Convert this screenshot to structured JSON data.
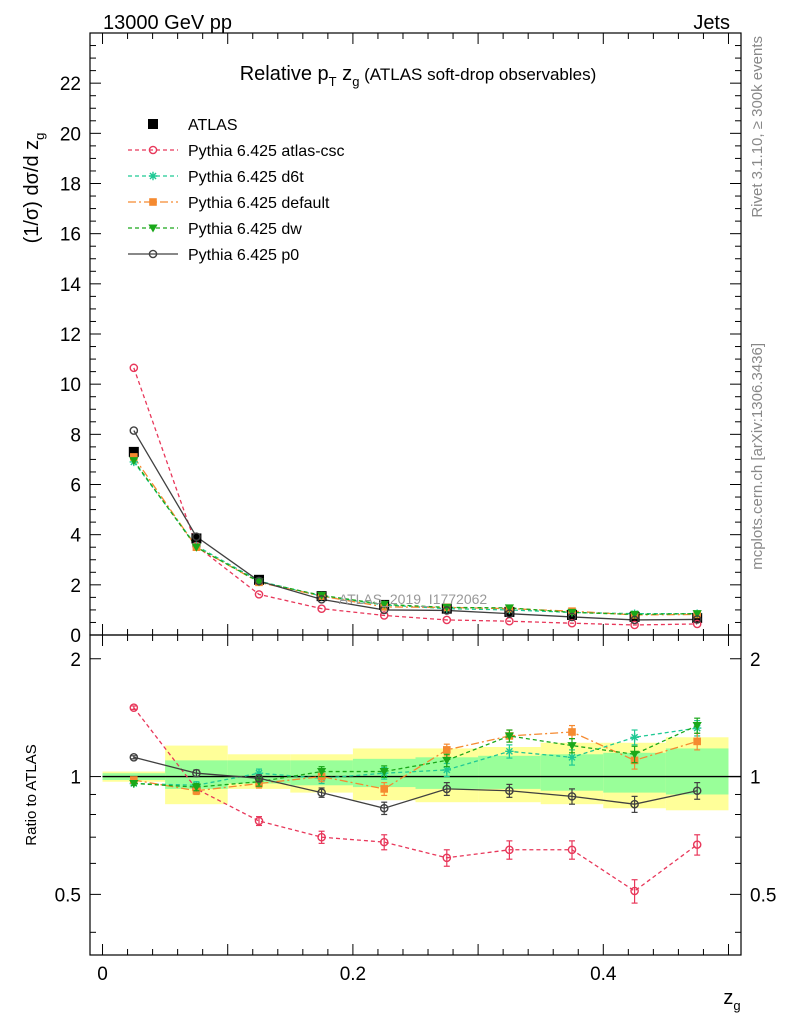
{
  "header": {
    "left": "13000 GeV pp",
    "right": "Jets"
  },
  "side_labels": {
    "rivet": "Rivet 3.1.10, ≥ 300k events",
    "mcplots": "mcplots.cern.ch [arXiv:1306.3436]"
  },
  "watermark": "ATLAS_2019_I1772062",
  "colors": {
    "ATLAS": "#000000",
    "atlas_csc": "#e8375a",
    "d6t": "#1ec994",
    "default": "#f58a30",
    "dw": "#1aa81a",
    "p0": "#404040",
    "band_yellow": "#ffff99",
    "band_green": "#99ff99"
  },
  "chart_data": [
    {
      "type": "line",
      "title": {
        "main": "Relative p",
        "sub1": "T",
        "mid": " z",
        "sub2": "g",
        "tail": " (ATLAS soft-drop observables)"
      },
      "ylabel": {
        "main": "(1/σ) dσ/d z",
        "sub": "g"
      },
      "xlim": [
        -0.01,
        0.51
      ],
      "ylim": [
        0,
        24
      ],
      "yticks": [
        0,
        2,
        4,
        6,
        8,
        10,
        12,
        14,
        16,
        18,
        20,
        22
      ],
      "x": [
        0.025,
        0.075,
        0.125,
        0.175,
        0.225,
        0.275,
        0.325,
        0.375,
        0.425,
        0.475
      ],
      "legend_position": "top-left",
      "data": {
        "name": "ATLAS",
        "values": [
          7.3,
          3.85,
          2.2,
          1.55,
          1.2,
          1.05,
          0.92,
          0.8,
          0.72,
          0.68
        ]
      },
      "series": [
        {
          "name": "Pythia 6.425 atlas-csc",
          "key": "atlas_csc",
          "values": [
            10.65,
            3.55,
            1.62,
            1.05,
            0.78,
            0.6,
            0.55,
            0.47,
            0.4,
            0.44
          ]
        },
        {
          "name": "Pythia 6.425 d6t",
          "key": "d6t",
          "values": [
            6.9,
            3.55,
            2.15,
            1.55,
            1.2,
            1.05,
            1.0,
            0.9,
            0.85,
            0.85
          ]
        },
        {
          "name": "Pythia 6.425 default",
          "key": "default",
          "values": [
            7.1,
            3.5,
            2.1,
            1.55,
            1.12,
            1.1,
            1.05,
            0.95,
            0.8,
            0.82
          ]
        },
        {
          "name": "Pythia 6.425 dw",
          "key": "dw",
          "values": [
            6.95,
            3.5,
            2.12,
            1.58,
            1.22,
            1.1,
            1.08,
            0.9,
            0.82,
            0.85
          ]
        },
        {
          "name": "Pythia 6.425 p0",
          "key": "p0",
          "values": [
            8.15,
            3.92,
            2.15,
            1.42,
            1.0,
            0.98,
            0.85,
            0.72,
            0.6,
            0.62
          ]
        }
      ]
    },
    {
      "type": "line",
      "ylabel": "Ratio to ATLAS",
      "xlabel": {
        "main": "z",
        "sub": "g"
      },
      "xlim": [
        -0.01,
        0.51
      ],
      "ylim": [
        0.35,
        2.3
      ],
      "yscale": "log",
      "ytick_labels": [
        {
          "value": 0.5,
          "label": "0.5"
        },
        {
          "value": 1,
          "label": "1"
        },
        {
          "value": 2,
          "label": "2"
        }
      ],
      "xtick_labels": [
        {
          "value": 0,
          "label": "0"
        },
        {
          "value": 0.2,
          "label": "0.2"
        },
        {
          "value": 0.4,
          "label": "0.4"
        }
      ],
      "x": [
        0.025,
        0.075,
        0.125,
        0.175,
        0.225,
        0.275,
        0.325,
        0.375,
        0.425,
        0.475
      ],
      "bin_edges": [
        0.0,
        0.05,
        0.1,
        0.15,
        0.2,
        0.25,
        0.3,
        0.35,
        0.4,
        0.45,
        0.5
      ],
      "band_yellow": [
        [
          0.97,
          1.03
        ],
        [
          0.85,
          1.2
        ],
        [
          0.93,
          1.14
        ],
        [
          0.91,
          1.14
        ],
        [
          0.87,
          1.18
        ],
        [
          0.86,
          1.18
        ],
        [
          0.86,
          1.19
        ],
        [
          0.85,
          1.22
        ],
        [
          0.83,
          1.22
        ],
        [
          0.82,
          1.26
        ]
      ],
      "band_green": [
        [
          0.98,
          1.02
        ],
        [
          0.93,
          1.1
        ],
        [
          0.96,
          1.1
        ],
        [
          0.95,
          1.1
        ],
        [
          0.94,
          1.11
        ],
        [
          0.93,
          1.12
        ],
        [
          0.93,
          1.13
        ],
        [
          0.92,
          1.14
        ],
        [
          0.91,
          1.15
        ],
        [
          0.9,
          1.18
        ]
      ],
      "series": [
        {
          "name": "Pythia 6.425 atlas-csc",
          "key": "atlas_csc",
          "values": [
            1.5,
            0.93,
            0.77,
            0.7,
            0.68,
            0.62,
            0.65,
            0.65,
            0.51,
            0.67
          ],
          "err": [
            0.015,
            0.02,
            0.02,
            0.025,
            0.03,
            0.03,
            0.035,
            0.035,
            0.035,
            0.04
          ]
        },
        {
          "name": "Pythia 6.425 d6t",
          "key": "d6t",
          "values": [
            0.96,
            0.95,
            1.02,
            0.99,
            1.02,
            1.04,
            1.16,
            1.12,
            1.26,
            1.33
          ],
          "err": [
            0.01,
            0.02,
            0.025,
            0.03,
            0.035,
            0.04,
            0.045,
            0.05,
            0.055,
            0.06
          ]
        },
        {
          "name": "Pythia 6.425 default",
          "key": "default",
          "values": [
            0.98,
            0.92,
            0.96,
            1.0,
            0.93,
            1.17,
            1.27,
            1.3,
            1.1,
            1.23
          ],
          "err": [
            0.01,
            0.02,
            0.025,
            0.03,
            0.035,
            0.04,
            0.045,
            0.05,
            0.055,
            0.06
          ]
        },
        {
          "name": "Pythia 6.425 dw",
          "key": "dw",
          "values": [
            0.96,
            0.94,
            0.97,
            1.03,
            1.03,
            1.1,
            1.27,
            1.2,
            1.14,
            1.35
          ],
          "err": [
            0.01,
            0.02,
            0.025,
            0.03,
            0.035,
            0.04,
            0.045,
            0.05,
            0.055,
            0.06
          ]
        },
        {
          "name": "Pythia 6.425 p0",
          "key": "p0",
          "values": [
            1.12,
            1.02,
            0.99,
            0.91,
            0.83,
            0.93,
            0.92,
            0.89,
            0.85,
            0.92
          ],
          "err": [
            0.01,
            0.02,
            0.02,
            0.025,
            0.03,
            0.035,
            0.035,
            0.04,
            0.04,
            0.045
          ]
        }
      ]
    }
  ]
}
